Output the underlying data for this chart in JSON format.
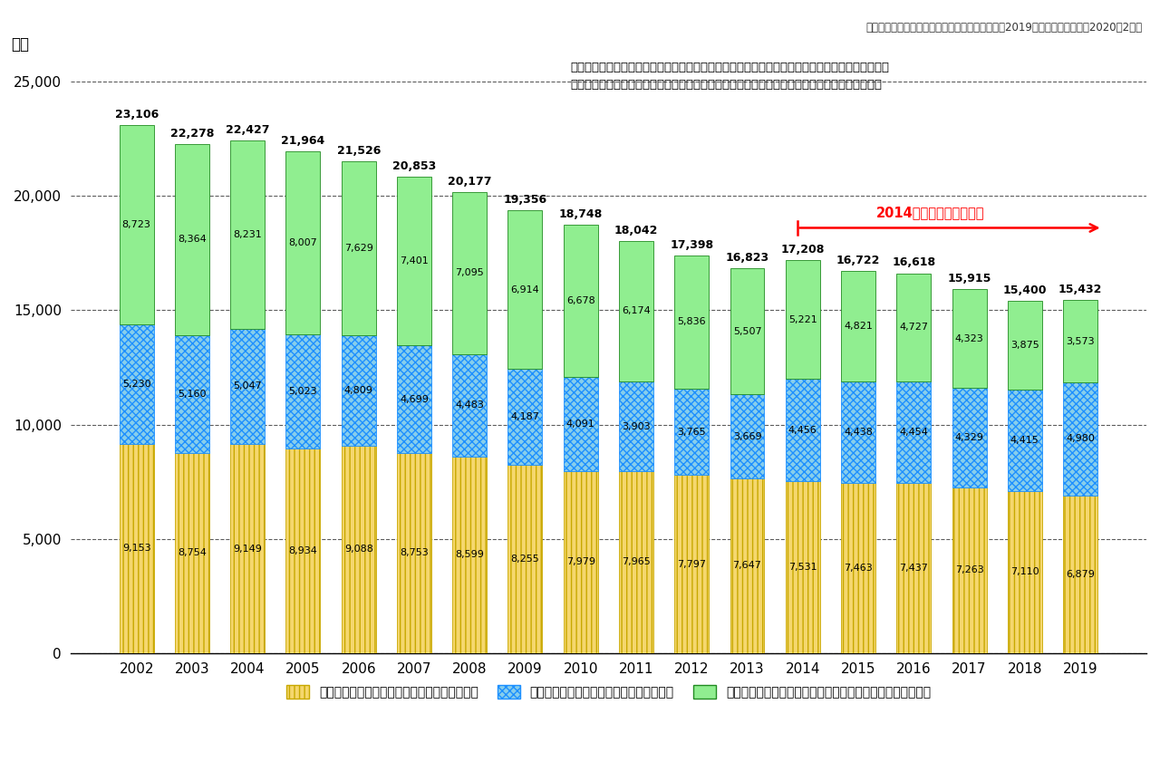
{
  "years": [
    "2002",
    "2003",
    "2004",
    "2005",
    "2006",
    "2007",
    "2008",
    "2009",
    "2010",
    "2011",
    "2012",
    "2013",
    "2014",
    "2015",
    "2016",
    "2017",
    "2018",
    "2019"
  ],
  "books": [
    9153,
    8754,
    9149,
    8934,
    9088,
    8753,
    8599,
    8255,
    7979,
    7965,
    7797,
    7647,
    7531,
    7463,
    7437,
    7263,
    7110,
    6879
  ],
  "comics": [
    5230,
    5160,
    5047,
    5023,
    4809,
    4699,
    4483,
    4187,
    4091,
    3903,
    3765,
    3669,
    4456,
    4438,
    4454,
    4329,
    4415,
    4980
  ],
  "magazines": [
    8723,
    8364,
    8231,
    8007,
    7629,
    7401,
    7095,
    6914,
    6678,
    6174,
    5836,
    5507,
    5221,
    4821,
    4727,
    4323,
    3875,
    3573
  ],
  "totals": [
    23106,
    22278,
    22427,
    21964,
    21526,
    20853,
    20177,
    19356,
    18748,
    18042,
    17398,
    16823,
    17208,
    16722,
    16618,
    15915,
    15400,
    15432
  ],
  "book_color": "#F5D76E",
  "book_edge": "#C8A800",
  "comic_color": "#87CEEB",
  "comic_edge": "#1E90FF",
  "magazine_color": "#90EE90",
  "magazine_edge": "#228B22",
  "background_color": "#FFFFFF",
  "ylabel": "億円",
  "ylim": [
    0,
    26000
  ],
  "yticks": [
    0,
    5000,
    10000,
    15000,
    20000,
    25000
  ],
  "source_text": "データ出典：出版科学研究所　『出版指標年報』2019年版・『出版月報』2020年2月号",
  "annotation_line1": "「書籍」から「書籍扱いコミックス」を除き「電子書籍」を加算、「雑誌」から「雑誌扱いコミッ",
  "annotation_line2": "クス」と「コミック誌」を除き「電子雑誌」を加算、「コミック」と「電子コミック」を合算。",
  "arrow_text": "2014年から電子市場追加",
  "legend_book": "書籍（書籍扱いコミックスを除く・電子含む）",
  "legend_comic": "コミック（コミック＋コミック誌＋電子）",
  "legend_magazine": "雑誌（雑誌扱いコミックス＆コミック誌を除く・電子含む）"
}
